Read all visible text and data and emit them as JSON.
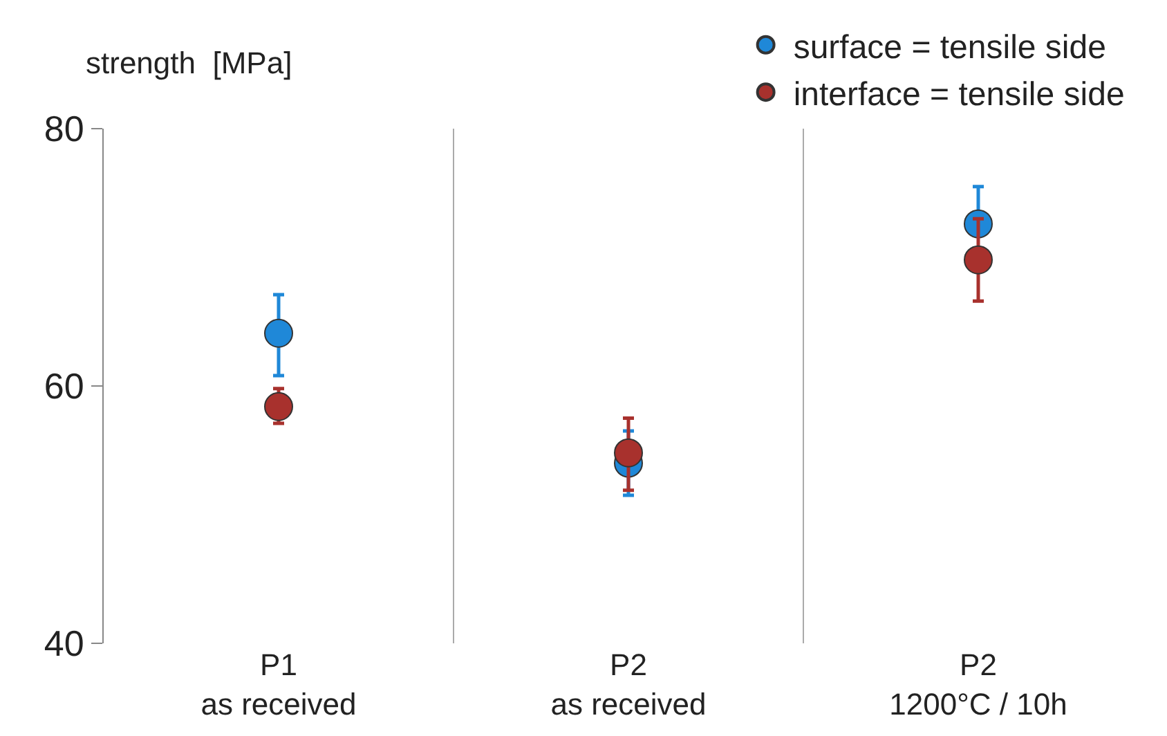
{
  "chart_data": {
    "type": "scatter",
    "ylabel": "strength  [MPa]",
    "categories": [
      "P1\nas received",
      "P2\nas received",
      "P2\n1200°C / 10h"
    ],
    "series": [
      {
        "name": "surface = tensile side",
        "color": "#1f88d8",
        "values": [
          64.1,
          54.0,
          72.6
        ],
        "errors": [
          [
            60.8,
            67.1
          ],
          [
            51.5,
            56.5
          ],
          [
            72.6,
            75.5
          ]
        ]
      },
      {
        "name": "interface = tensile side",
        "color": "#a8312d",
        "values": [
          58.4,
          54.8,
          69.8
        ],
        "errors": [
          [
            57.1,
            59.8
          ],
          [
            51.9,
            57.5
          ],
          [
            66.6,
            73.0
          ]
        ]
      }
    ],
    "ylim": [
      40,
      80
    ],
    "yticks": [
      40,
      60,
      80
    ],
    "grid": "x",
    "legend": "top right",
    "marker": "circle"
  }
}
